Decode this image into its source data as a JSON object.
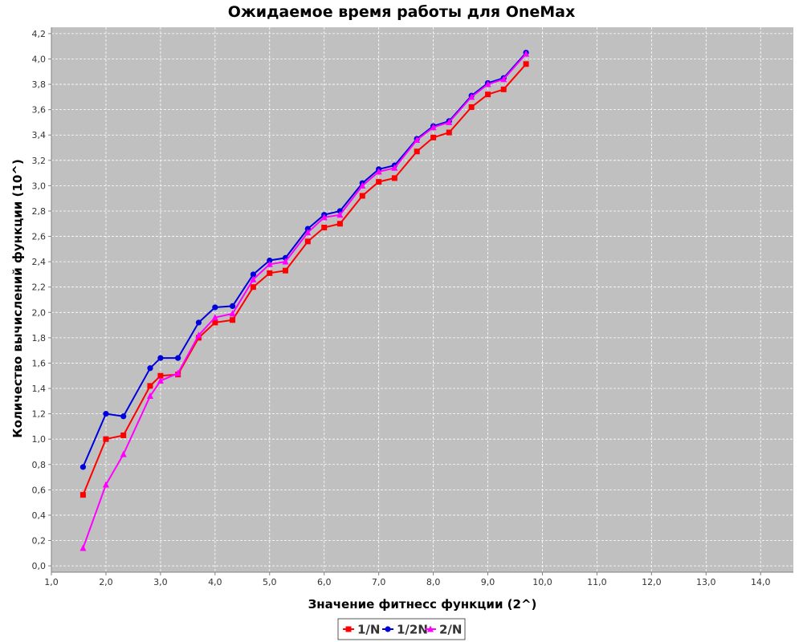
{
  "chart_data": {
    "type": "line",
    "title": "Ожидаемое время работы для OneMax",
    "xlabel": "Значение фитнесс функции (2^)",
    "ylabel": "Количество вычислений функции (10^)",
    "xlim": [
      1.0,
      14.6
    ],
    "ylim": [
      -0.05,
      4.25
    ],
    "x_ticks": [
      1.0,
      2.0,
      3.0,
      4.0,
      5.0,
      6.0,
      7.0,
      8.0,
      9.0,
      10.0,
      11.0,
      12.0,
      13.0,
      14.0
    ],
    "x_tick_labels": [
      "1,0",
      "2,0",
      "3,0",
      "4,0",
      "5,0",
      "6,0",
      "7,0",
      "8,0",
      "9,0",
      "10,0",
      "11,0",
      "12,0",
      "13,0",
      "14,0"
    ],
    "y_ticks": [
      0.0,
      0.2,
      0.4,
      0.6,
      0.8,
      1.0,
      1.2,
      1.4,
      1.6,
      1.8,
      2.0,
      2.2,
      2.4,
      2.6,
      2.8,
      3.0,
      3.2,
      3.4,
      3.6,
      3.8,
      4.0,
      4.2
    ],
    "y_tick_labels": [
      "0,0",
      "0,2",
      "0,4",
      "0,6",
      "0,8",
      "1,0",
      "1,2",
      "1,4",
      "1,6",
      "1,8",
      "2,0",
      "2,2",
      "2,4",
      "2,6",
      "2,8",
      "3,0",
      "3,2",
      "3,4",
      "3,6",
      "3,8",
      "4,0",
      "4,2"
    ],
    "grid": true,
    "legend_position": "bottom-center",
    "plot_background": "#c0c0c0",
    "series": [
      {
        "name": "1/N",
        "color": "#ff0000",
        "marker": "square",
        "x": [
          1.58,
          2.0,
          2.32,
          2.81,
          3.0,
          3.32,
          3.7,
          4.0,
          4.32,
          4.7,
          5.0,
          5.29,
          5.7,
          6.0,
          6.29,
          6.7,
          7.0,
          7.29,
          7.7,
          8.0,
          8.29,
          8.7,
          9.0,
          9.29,
          9.7
        ],
        "y": [
          0.56,
          1.0,
          1.03,
          1.42,
          1.5,
          1.51,
          1.8,
          1.92,
          1.94,
          2.2,
          2.31,
          2.33,
          2.56,
          2.67,
          2.7,
          2.92,
          3.03,
          3.06,
          3.27,
          3.38,
          3.42,
          3.62,
          3.72,
          3.76,
          3.96
        ]
      },
      {
        "name": "1/2N",
        "color": "#0000dd",
        "marker": "circle",
        "x": [
          1.58,
          2.0,
          2.32,
          2.81,
          3.0,
          3.32,
          3.7,
          4.0,
          4.32,
          4.7,
          5.0,
          5.29,
          5.7,
          6.0,
          6.29,
          6.7,
          7.0,
          7.29,
          7.7,
          8.0,
          8.29,
          8.7,
          9.0,
          9.29,
          9.7
        ],
        "y": [
          0.78,
          1.2,
          1.18,
          1.56,
          1.64,
          1.64,
          1.92,
          2.04,
          2.05,
          2.3,
          2.41,
          2.43,
          2.66,
          2.77,
          2.8,
          3.02,
          3.13,
          3.16,
          3.37,
          3.47,
          3.51,
          3.71,
          3.81,
          3.85,
          4.05
        ]
      },
      {
        "name": "2/N",
        "color": "#ff00ff",
        "marker": "triangle",
        "x": [
          1.58,
          2.0,
          2.32,
          2.81,
          3.0,
          3.32,
          3.7,
          4.0,
          4.32,
          4.7,
          5.0,
          5.29,
          5.7,
          6.0,
          6.29,
          6.7,
          7.0,
          7.29,
          7.7,
          8.0,
          8.29,
          8.7,
          9.0,
          9.29,
          9.7
        ],
        "y": [
          0.14,
          0.64,
          0.88,
          1.34,
          1.46,
          1.52,
          1.82,
          1.96,
          1.99,
          2.26,
          2.38,
          2.4,
          2.63,
          2.75,
          2.77,
          3.0,
          3.11,
          3.14,
          3.36,
          3.46,
          3.5,
          3.7,
          3.8,
          3.84,
          4.04
        ]
      }
    ]
  }
}
